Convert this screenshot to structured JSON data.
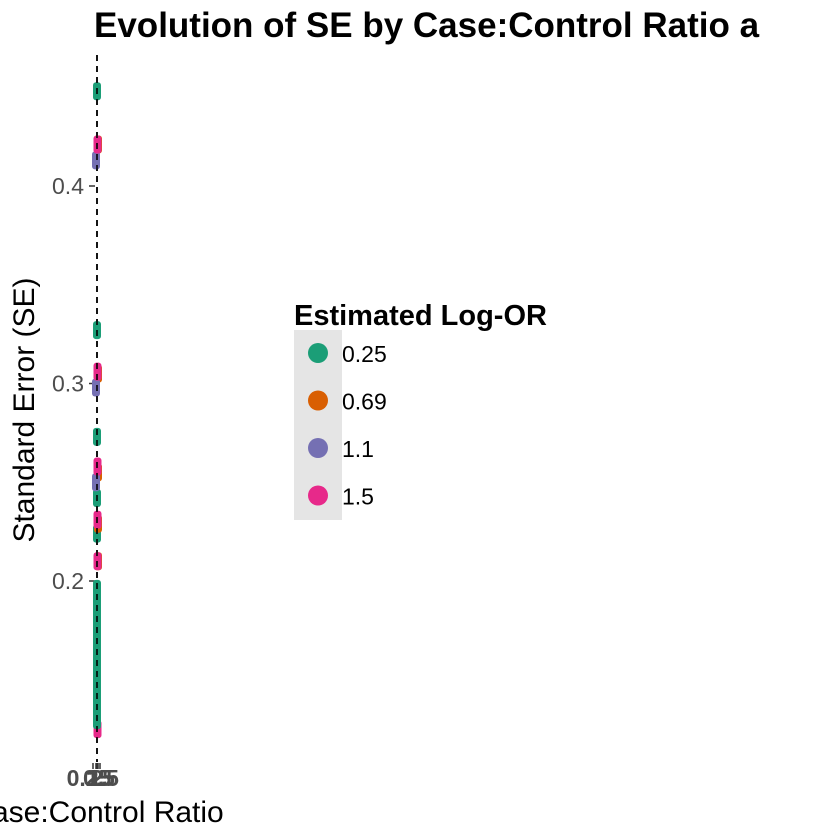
{
  "chart_data": {
    "type": "scatter",
    "title": "Evolution of SE by Case:Control Ratio a",
    "xlabel": "Case:Control Ratio",
    "ylabel": "Standard Error (SE)",
    "y_ticks": [
      "0.2",
      "0.3",
      "0.4"
    ],
    "x_ticks_overlapping": [
      "0.25",
      "0.5",
      "1",
      "1.5",
      "2"
    ],
    "ylim": [
      0.115,
      0.465
    ],
    "reference_line": "vertical dashed",
    "grid": false,
    "legend": {
      "title": "Estimated Log-OR",
      "placement": "center-right",
      "entries": [
        {
          "label": "0.25",
          "color": "#1B9E77"
        },
        {
          "label": "0.69",
          "color": "#D95F02"
        },
        {
          "label": "1.1",
          "color": "#7570B3"
        },
        {
          "label": "1.5",
          "color": "#E7298A"
        }
      ]
    },
    "series": [
      {
        "name": "0.25",
        "color": "#1B9E77",
        "values": [
          0.448,
          0.327,
          0.273,
          0.242,
          0.224,
          0.196,
          0.185,
          0.173,
          0.162,
          0.151,
          0.14,
          0.13
        ]
      },
      {
        "name": "0.69",
        "color": "#D95F02",
        "values": [
          0.421,
          0.305,
          0.255,
          0.229,
          0.21
        ]
      },
      {
        "name": "1.1",
        "color": "#7570B3",
        "values": [
          0.413,
          0.298,
          0.25
        ]
      },
      {
        "name": "1.5",
        "color": "#E7298A",
        "values": [
          0.421,
          0.306,
          0.258,
          0.231,
          0.21,
          0.125
        ]
      }
    ]
  }
}
